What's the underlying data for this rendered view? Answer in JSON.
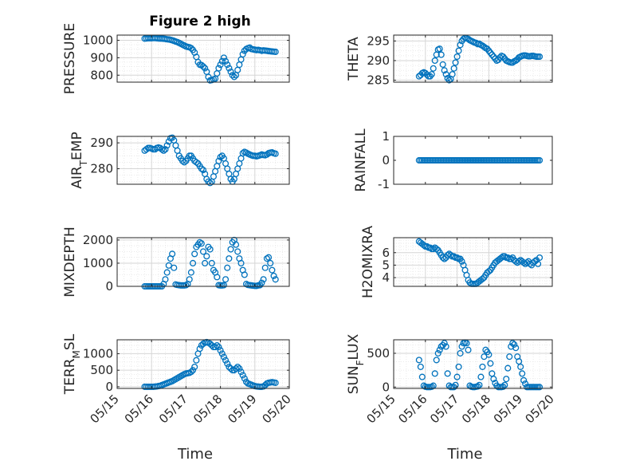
{
  "chart_data": [
    {
      "type": "scatter",
      "title": "Figure 2 high",
      "ylabel": "PRESSURE",
      "ylim": [
        760,
        1030
      ],
      "yticks": [
        800,
        900,
        1000
      ],
      "ytick_labels": [
        "800",
        "900",
        "1000"
      ],
      "grid": true,
      "x_day": [
        15.8,
        15.85,
        15.9,
        15.95,
        16.0,
        16.05,
        16.1,
        16.15,
        16.2,
        16.25,
        16.3,
        16.35,
        16.4,
        16.45,
        16.5,
        16.55,
        16.6,
        16.65,
        16.7,
        16.75,
        16.8,
        16.85,
        16.9,
        16.95,
        17.0,
        17.05,
        17.1,
        17.15,
        17.2,
        17.25,
        17.3,
        17.35,
        17.4,
        17.45,
        17.5,
        17.55,
        17.6,
        17.65,
        17.7,
        17.75,
        17.8,
        17.85,
        17.9,
        17.95,
        18.0,
        18.05,
        18.1,
        18.15,
        18.2,
        18.25,
        18.3,
        18.35,
        18.4,
        18.45,
        18.5,
        18.55,
        18.6,
        18.65,
        18.7,
        18.75,
        18.8,
        18.85,
        18.9,
        18.95,
        19.0,
        19.05,
        19.1,
        19.15,
        19.2,
        19.25,
        19.3,
        19.35,
        19.4,
        19.45,
        19.5,
        19.55,
        19.6
      ],
      "y": [
        1010,
        1011,
        1012,
        1012,
        1012,
        1013,
        1013,
        1012,
        1011,
        1010,
        1010,
        1009,
        1008,
        1006,
        1005,
        1003,
        1000,
        997,
        993,
        990,
        985,
        980,
        975,
        970,
        965,
        962,
        960,
        955,
        945,
        930,
        905,
        875,
        860,
        858,
        850,
        840,
        820,
        790,
        770,
        772,
        776,
        780,
        810,
        840,
        860,
        880,
        900,
        880,
        860,
        840,
        820,
        800,
        790,
        800,
        830,
        860,
        890,
        920,
        940,
        950,
        955,
        958,
        950,
        948,
        946,
        944,
        945,
        943,
        940,
        942,
        941,
        940,
        938,
        937,
        936,
        935,
        934
      ]
    },
    {
      "type": "scatter",
      "ylabel": "THETA",
      "ylim": [
        284.5,
        296.5
      ],
      "yticks": [
        285,
        290,
        295
      ],
      "ytick_labels": [
        "285",
        "290",
        "295"
      ],
      "grid": true,
      "x_day": [
        15.8,
        15.85,
        15.9,
        15.95,
        16.0,
        16.05,
        16.1,
        16.15,
        16.2,
        16.25,
        16.3,
        16.35,
        16.4,
        16.45,
        16.5,
        16.55,
        16.6,
        16.65,
        16.7,
        16.75,
        16.8,
        16.85,
        16.9,
        16.95,
        17.0,
        17.05,
        17.1,
        17.15,
        17.2,
        17.25,
        17.3,
        17.35,
        17.4,
        17.45,
        17.5,
        17.55,
        17.6,
        17.65,
        17.7,
        17.75,
        17.8,
        17.85,
        17.9,
        17.95,
        18.0,
        18.05,
        18.1,
        18.15,
        18.2,
        18.25,
        18.3,
        18.35,
        18.4,
        18.45,
        18.5,
        18.55,
        18.6,
        18.65,
        18.7,
        18.75,
        18.8,
        18.85,
        18.9,
        18.95,
        19.0,
        19.05,
        19.1,
        19.15,
        19.2,
        19.25,
        19.3,
        19.35,
        19.4,
        19.45,
        19.5,
        19.55,
        19.6
      ],
      "y": [
        286,
        286.3,
        286.8,
        287,
        286.8,
        286.4,
        286,
        286,
        286.5,
        288,
        290,
        291.5,
        292.8,
        293,
        291.5,
        289,
        287.5,
        286.5,
        285.5,
        285,
        285.3,
        286.5,
        288,
        289.5,
        291,
        292.5,
        294,
        295,
        295.5,
        295.8,
        295.7,
        295.5,
        295.2,
        295,
        294.8,
        294.6,
        294.5,
        294.2,
        294.3,
        294,
        293.8,
        293.5,
        293.2,
        293,
        292.5,
        292,
        291.5,
        291,
        290.5,
        290,
        290.2,
        290.8,
        291.2,
        291,
        290.5,
        290,
        289.8,
        289.6,
        289.5,
        289.5,
        289.8,
        290,
        290.3,
        290.8,
        291,
        291.2,
        291.3,
        291.3,
        291.2,
        291.1,
        291.1,
        291.2,
        291.2,
        291.1,
        291,
        291,
        291
      ]
    },
    {
      "type": "scatter",
      "ylabel": "AIR_TEMP",
      "ylabel_main": "AIR",
      "ylabel_sub": "T",
      "ylabel_rest": "EMP",
      "ylim": [
        274,
        292.5
      ],
      "yticks": [
        280,
        290
      ],
      "ytick_labels": [
        "280",
        "290"
      ],
      "grid": true,
      "x_day": [
        15.8,
        15.85,
        15.9,
        15.95,
        16.0,
        16.05,
        16.1,
        16.15,
        16.2,
        16.25,
        16.3,
        16.35,
        16.4,
        16.45,
        16.5,
        16.55,
        16.6,
        16.65,
        16.7,
        16.75,
        16.8,
        16.85,
        16.9,
        16.95,
        17.0,
        17.05,
        17.1,
        17.15,
        17.2,
        17.25,
        17.3,
        17.35,
        17.4,
        17.45,
        17.5,
        17.55,
        17.6,
        17.65,
        17.7,
        17.75,
        17.8,
        17.85,
        17.9,
        17.95,
        18.0,
        18.05,
        18.1,
        18.15,
        18.2,
        18.25,
        18.3,
        18.35,
        18.4,
        18.45,
        18.5,
        18.55,
        18.6,
        18.65,
        18.7,
        18.75,
        18.8,
        18.85,
        18.9,
        18.95,
        19.0,
        19.05,
        19.1,
        19.15,
        19.2,
        19.25,
        19.3,
        19.35,
        19.4,
        19.45,
        19.5,
        19.55,
        19.6
      ],
      "y": [
        287,
        287.5,
        288,
        288,
        287.8,
        287.5,
        287.5,
        288,
        288.2,
        288,
        287.5,
        287,
        287.5,
        289,
        290.5,
        291.8,
        292,
        291,
        289,
        287,
        285,
        284,
        283,
        282.5,
        283,
        284,
        285,
        285,
        284,
        283,
        282.5,
        282,
        281,
        280,
        279.5,
        278,
        276,
        275,
        274.5,
        275,
        277,
        279,
        281,
        283,
        284.5,
        285,
        284,
        282,
        280,
        278,
        276,
        275,
        276,
        278,
        280,
        282,
        284,
        286,
        286.5,
        286.2,
        285.8,
        285.5,
        285.2,
        285,
        285,
        284.8,
        285,
        285.2,
        285.5,
        285.3,
        285.2,
        285.5,
        286,
        286.2,
        286.3,
        286,
        285.8
      ]
    },
    {
      "type": "scatter",
      "ylabel": "RAINFALL",
      "ylim": [
        -1,
        1
      ],
      "yticks": [
        -1,
        0,
        1
      ],
      "ytick_labels": [
        "-1",
        "0",
        "1"
      ],
      "grid": false,
      "x_day": [
        15.8,
        15.85,
        15.9,
        15.95,
        16.0,
        16.05,
        16.1,
        16.15,
        16.2,
        16.25,
        16.3,
        16.35,
        16.4,
        16.45,
        16.5,
        16.55,
        16.6,
        16.65,
        16.7,
        16.75,
        16.8,
        16.85,
        16.9,
        16.95,
        17.0,
        17.05,
        17.1,
        17.15,
        17.2,
        17.25,
        17.3,
        17.35,
        17.4,
        17.45,
        17.5,
        17.55,
        17.6,
        17.65,
        17.7,
        17.75,
        17.8,
        17.85,
        17.9,
        17.95,
        18.0,
        18.05,
        18.1,
        18.15,
        18.2,
        18.25,
        18.3,
        18.35,
        18.4,
        18.45,
        18.5,
        18.55,
        18.6,
        18.65,
        18.7,
        18.75,
        18.8,
        18.85,
        18.9,
        18.95,
        19.0,
        19.05,
        19.1,
        19.15,
        19.2,
        19.25,
        19.3,
        19.35,
        19.4,
        19.45,
        19.5,
        19.55,
        19.6
      ],
      "y": [
        0,
        0,
        0,
        0,
        0,
        0,
        0,
        0,
        0,
        0,
        0,
        0,
        0,
        0,
        0,
        0,
        0,
        0,
        0,
        0,
        0,
        0,
        0,
        0,
        0,
        0,
        0,
        0,
        0,
        0,
        0,
        0,
        0,
        0,
        0,
        0,
        0,
        0,
        0,
        0,
        0,
        0,
        0,
        0,
        0,
        0,
        0,
        0,
        0,
        0,
        0,
        0,
        0,
        0,
        0,
        0,
        0,
        0,
        0,
        0,
        0,
        0,
        0,
        0,
        0,
        0,
        0,
        0,
        0,
        0,
        0,
        0,
        0,
        0,
        0,
        0,
        0
      ]
    },
    {
      "type": "scatter",
      "ylabel": "MIXDEPTH",
      "ylim": [
        0,
        2100
      ],
      "yticks": [
        0,
        1000,
        2000
      ],
      "ytick_labels": [
        "0",
        "1000",
        "2000"
      ],
      "grid": true,
      "x_day": [
        15.8,
        15.85,
        15.9,
        15.95,
        16.0,
        16.05,
        16.1,
        16.15,
        16.2,
        16.25,
        16.3,
        16.35,
        16.4,
        16.45,
        16.5,
        16.55,
        16.6,
        16.65,
        16.7,
        16.75,
        16.8,
        16.85,
        16.9,
        16.95,
        17.0,
        17.05,
        17.1,
        17.15,
        17.2,
        17.25,
        17.3,
        17.35,
        17.4,
        17.45,
        17.5,
        17.55,
        17.6,
        17.65,
        17.7,
        17.75,
        17.8,
        17.85,
        17.9,
        17.95,
        18.0,
        18.05,
        18.1,
        18.15,
        18.2,
        18.25,
        18.3,
        18.35,
        18.4,
        18.45,
        18.5,
        18.55,
        18.6,
        18.65,
        18.7,
        18.75,
        18.8,
        18.85,
        18.9,
        18.95,
        19.0,
        19.05,
        19.1,
        19.15,
        19.2,
        19.25,
        19.3,
        19.35,
        19.4,
        19.45,
        19.5,
        19.55,
        19.6
      ],
      "y": [
        0,
        0,
        0,
        0,
        0,
        0,
        0,
        0,
        0,
        0,
        0,
        100,
        300,
        600,
        900,
        1200,
        1400,
        800,
        80,
        60,
        50,
        40,
        40,
        40,
        50,
        100,
        300,
        600,
        1000,
        1400,
        1700,
        1800,
        1900,
        1850,
        1500,
        1000,
        1300,
        1700,
        1600,
        1000,
        700,
        600,
        400,
        50,
        40,
        40,
        50,
        300,
        800,
        1200,
        1600,
        1900,
        2000,
        1800,
        1500,
        1200,
        1000,
        700,
        500,
        100,
        60,
        50,
        40,
        30,
        20,
        20,
        40,
        50,
        150,
        300,
        800,
        1200,
        1250,
        1000,
        700,
        450,
        300
      ]
    },
    {
      "type": "scatter",
      "ylabel": "H2OMIXRA",
      "ylim": [
        3.3,
        7.2
      ],
      "yticks": [
        4,
        5,
        6
      ],
      "ytick_labels": [
        "4",
        "5",
        "6"
      ],
      "grid": true,
      "x_day": [
        15.8,
        15.85,
        15.9,
        15.95,
        16.0,
        16.05,
        16.1,
        16.15,
        16.2,
        16.25,
        16.3,
        16.35,
        16.4,
        16.45,
        16.5,
        16.55,
        16.6,
        16.65,
        16.7,
        16.75,
        16.8,
        16.85,
        16.9,
        16.95,
        17.0,
        17.05,
        17.1,
        17.15,
        17.2,
        17.25,
        17.3,
        17.35,
        17.4,
        17.45,
        17.5,
        17.55,
        17.6,
        17.65,
        17.7,
        17.75,
        17.8,
        17.85,
        17.9,
        17.95,
        18.0,
        18.05,
        18.1,
        18.15,
        18.2,
        18.25,
        18.3,
        18.35,
        18.4,
        18.45,
        18.5,
        18.55,
        18.6,
        18.65,
        18.7,
        18.75,
        18.8,
        18.85,
        18.9,
        18.95,
        19.0,
        19.05,
        19.1,
        19.15,
        19.2,
        19.25,
        19.3,
        19.35,
        19.4,
        19.45,
        19.5,
        19.55,
        19.6
      ],
      "y": [
        6.9,
        6.8,
        6.7,
        6.6,
        6.5,
        6.5,
        6.4,
        6.4,
        6.3,
        6.3,
        6.4,
        6.3,
        6.2,
        6.0,
        5.8,
        5.6,
        5.5,
        5.6,
        5.8,
        5.9,
        5.8,
        5.7,
        5.7,
        5.6,
        5.6,
        5.5,
        5.5,
        5.3,
        5.0,
        4.6,
        4.2,
        3.8,
        3.6,
        3.5,
        3.5,
        3.5,
        3.5,
        3.6,
        3.7,
        3.8,
        3.9,
        4.0,
        4.2,
        4.4,
        4.5,
        4.6,
        4.8,
        5.0,
        5.2,
        5.3,
        5.4,
        5.5,
        5.6,
        5.7,
        5.7,
        5.6,
        5.6,
        5.5,
        5.5,
        5.6,
        5.4,
        5.3,
        5.2,
        5.3,
        5.4,
        5.3,
        5.2,
        5.1,
        5.2,
        5.3,
        5.1,
        5.0,
        5.2,
        5.3,
        5.4,
        5.1,
        5.6
      ]
    },
    {
      "type": "scatter",
      "ylabel": "TERR_MSL",
      "ylabel_main": "TERR",
      "ylabel_sub": "M",
      "ylabel_rest": "SL",
      "ylim": [
        -50,
        1420
      ],
      "yticks": [
        0,
        500,
        1000
      ],
      "ytick_labels": [
        "0",
        "500",
        "1000"
      ],
      "grid": true,
      "xlabel": "Time",
      "xticks": [
        "05/15",
        "05/16",
        "05/17",
        "05/18",
        "05/19",
        "05/20"
      ],
      "x_day": [
        15.8,
        15.85,
        15.9,
        15.95,
        16.0,
        16.05,
        16.1,
        16.15,
        16.2,
        16.25,
        16.3,
        16.35,
        16.4,
        16.45,
        16.5,
        16.55,
        16.6,
        16.65,
        16.7,
        16.75,
        16.8,
        16.85,
        16.9,
        16.95,
        17.0,
        17.05,
        17.1,
        17.15,
        17.2,
        17.25,
        17.3,
        17.35,
        17.4,
        17.45,
        17.5,
        17.55,
        17.6,
        17.65,
        17.7,
        17.75,
        17.8,
        17.85,
        17.9,
        17.95,
        18.0,
        18.05,
        18.1,
        18.15,
        18.2,
        18.25,
        18.3,
        18.35,
        18.4,
        18.45,
        18.5,
        18.55,
        18.6,
        18.65,
        18.7,
        18.75,
        18.8,
        18.85,
        18.9,
        18.95,
        19.0,
        19.05,
        19.1,
        19.15,
        19.2,
        19.25,
        19.3,
        19.35,
        19.4,
        19.45,
        19.5,
        19.55,
        19.6
      ],
      "y": [
        0,
        0,
        0,
        0,
        0,
        0,
        5,
        10,
        20,
        30,
        50,
        70,
        90,
        110,
        130,
        150,
        170,
        200,
        230,
        260,
        290,
        320,
        350,
        380,
        400,
        410,
        420,
        450,
        500,
        600,
        800,
        1000,
        1150,
        1250,
        1300,
        1330,
        1350,
        1330,
        1300,
        1250,
        1200,
        1200,
        1250,
        1200,
        1100,
        1000,
        900,
        800,
        700,
        600,
        550,
        500,
        500,
        550,
        600,
        550,
        450,
        350,
        250,
        150,
        100,
        80,
        60,
        40,
        20,
        10,
        5,
        0,
        0,
        10,
        50,
        100,
        120,
        130,
        140,
        130,
        120
      ]
    },
    {
      "type": "scatter",
      "ylabel": "SUN_FLUX",
      "ylabel_main": "SUN",
      "ylabel_sub": "F",
      "ylabel_rest": "LUX",
      "ylim": [
        -20,
        700
      ],
      "yticks": [
        0,
        500
      ],
      "ytick_labels": [
        "0",
        "500"
      ],
      "grid": true,
      "xlabel": "Time",
      "xticks": [
        "05/15",
        "05/16",
        "05/17",
        "05/18",
        "05/19",
        "05/20"
      ],
      "x_day": [
        15.8,
        15.85,
        15.9,
        15.95,
        16.0,
        16.05,
        16.1,
        16.15,
        16.2,
        16.25,
        16.3,
        16.35,
        16.4,
        16.45,
        16.5,
        16.55,
        16.6,
        16.65,
        16.7,
        16.75,
        16.8,
        16.85,
        16.9,
        16.95,
        17.0,
        17.05,
        17.1,
        17.15,
        17.2,
        17.25,
        17.3,
        17.35,
        17.4,
        17.45,
        17.5,
        17.55,
        17.6,
        17.65,
        17.7,
        17.75,
        17.8,
        17.85,
        17.9,
        17.95,
        18.0,
        18.05,
        18.1,
        18.15,
        18.2,
        18.25,
        18.3,
        18.35,
        18.4,
        18.45,
        18.5,
        18.55,
        18.6,
        18.65,
        18.7,
        18.75,
        18.8,
        18.85,
        18.9,
        18.95,
        19.0,
        19.05,
        19.1,
        19.15,
        19.2,
        19.25,
        19.3,
        19.35,
        19.4,
        19.45,
        19.5,
        19.55,
        19.6
      ],
      "y": [
        400,
        300,
        150,
        20,
        5,
        0,
        0,
        0,
        5,
        20,
        200,
        400,
        500,
        550,
        600,
        620,
        650,
        600,
        200,
        20,
        0,
        0,
        0,
        30,
        150,
        300,
        500,
        600,
        650,
        660,
        650,
        550,
        20,
        5,
        0,
        0,
        5,
        10,
        30,
        150,
        300,
        450,
        550,
        520,
        480,
        350,
        200,
        120,
        60,
        20,
        0,
        0,
        0,
        5,
        30,
        120,
        280,
        450,
        600,
        650,
        630,
        580,
        450,
        380,
        300,
        200,
        100,
        50,
        0,
        0,
        0,
        0,
        0,
        0,
        0,
        0,
        0
      ]
    }
  ]
}
